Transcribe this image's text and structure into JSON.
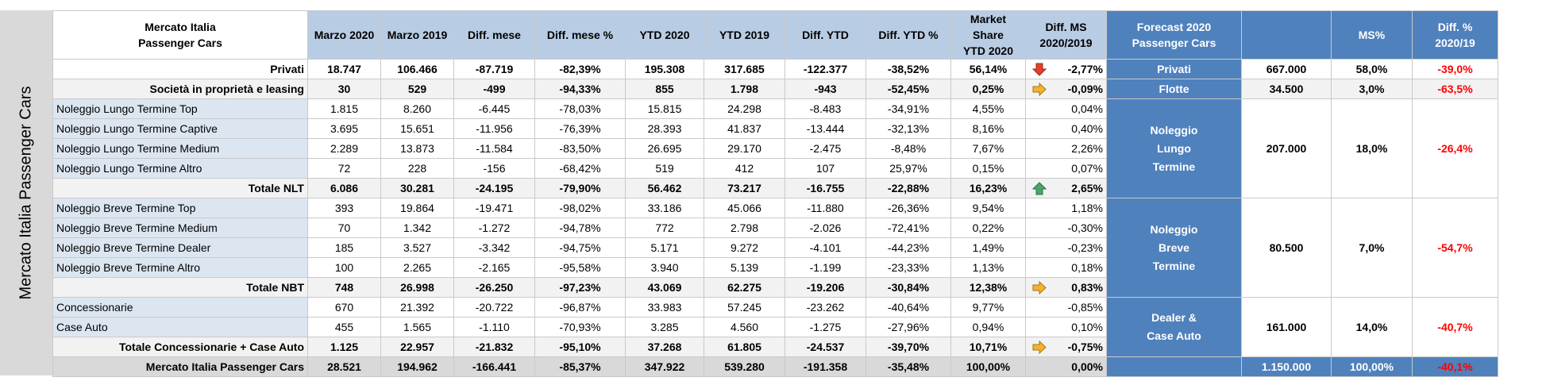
{
  "side_title": "Mercato Italia Passenger Cars",
  "header": {
    "label_line1": "Mercato Italia",
    "label_line2": "Passenger Cars",
    "cols": [
      "Marzo 2020",
      "Marzo 2019",
      "Diff. mese",
      "Diff. mese %",
      "YTD 2020",
      "YTD 2019",
      "Diff. YTD",
      "Diff. YTD %"
    ],
    "ms_line1": "Market Share",
    "ms_line2": "YTD 2020",
    "dms_line1": "Diff. MS",
    "dms_line2": "2020/2019",
    "fc_line1": "Forecast 2020",
    "fc_line2": "Passenger Cars",
    "fc_ms": "MS%",
    "fc_diff_line1": "Diff. %",
    "fc_diff_line2": "2020/19"
  },
  "rows": [
    {
      "label": "Privati",
      "v": [
        "18.747",
        "106.466",
        "-87.719",
        "-82,39%",
        "195.308",
        "317.685",
        "-122.377",
        "-38,52%",
        "56,14%",
        "-2,77%"
      ],
      "arrow": "down-red"
    },
    {
      "label": "Società in proprietà e leasing",
      "v": [
        "30",
        "529",
        "-499",
        "-94,33%",
        "855",
        "1.798",
        "-943",
        "-52,45%",
        "0,25%",
        "-0,09%"
      ],
      "arrow": "right-yellow"
    },
    {
      "label": "Noleggio Lungo Termine Top",
      "v": [
        "1.815",
        "8.260",
        "-6.445",
        "-78,03%",
        "15.815",
        "24.298",
        "-8.483",
        "-34,91%",
        "4,55%",
        "0,04%"
      ]
    },
    {
      "label": "Noleggio Lungo Termine Captive",
      "v": [
        "3.695",
        "15.651",
        "-11.956",
        "-76,39%",
        "28.393",
        "41.837",
        "-13.444",
        "-32,13%",
        "8,16%",
        "0,40%"
      ]
    },
    {
      "label": "Noleggio Lungo Termine Medium",
      "v": [
        "2.289",
        "13.873",
        "-11.584",
        "-83,50%",
        "26.695",
        "29.170",
        "-2.475",
        "-8,48%",
        "7,67%",
        "2,26%"
      ]
    },
    {
      "label": "Noleggio Lungo Termine Altro",
      "v": [
        "72",
        "228",
        "-156",
        "-68,42%",
        "519",
        "412",
        "107",
        "25,97%",
        "0,15%",
        "0,07%"
      ]
    },
    {
      "label": "Totale NLT",
      "v": [
        "6.086",
        "30.281",
        "-24.195",
        "-79,90%",
        "56.462",
        "73.217",
        "-16.755",
        "-22,88%",
        "16,23%",
        "2,65%"
      ],
      "arrow": "up-green"
    },
    {
      "label": "Noleggio Breve Termine Top",
      "v": [
        "393",
        "19.864",
        "-19.471",
        "-98,02%",
        "33.186",
        "45.066",
        "-11.880",
        "-26,36%",
        "9,54%",
        "1,18%"
      ]
    },
    {
      "label": "Noleggio Breve Termine Medium",
      "v": [
        "70",
        "1.342",
        "-1.272",
        "-94,78%",
        "772",
        "2.798",
        "-2.026",
        "-72,41%",
        "0,22%",
        "-0,30%"
      ]
    },
    {
      "label": "Noleggio Breve Termine Dealer",
      "v": [
        "185",
        "3.527",
        "-3.342",
        "-94,75%",
        "5.171",
        "9.272",
        "-4.101",
        "-44,23%",
        "1,49%",
        "-0,23%"
      ]
    },
    {
      "label": "Noleggio Breve Termine Altro",
      "v": [
        "100",
        "2.265",
        "-2.165",
        "-95,58%",
        "3.940",
        "5.139",
        "-1.199",
        "-23,33%",
        "1,13%",
        "0,18%"
      ]
    },
    {
      "label": "Totale NBT",
      "v": [
        "748",
        "26.998",
        "-26.250",
        "-97,23%",
        "43.069",
        "62.275",
        "-19.206",
        "-30,84%",
        "12,38%",
        "0,83%"
      ],
      "arrow": "right-yellow"
    },
    {
      "label": "Concessionarie",
      "v": [
        "670",
        "21.392",
        "-20.722",
        "-96,87%",
        "33.983",
        "57.245",
        "-23.262",
        "-40,64%",
        "9,77%",
        "-0,85%"
      ]
    },
    {
      "label": "Case Auto",
      "v": [
        "455",
        "1.565",
        "-1.110",
        "-70,93%",
        "3.285",
        "4.560",
        "-1.275",
        "-27,96%",
        "0,94%",
        "0,10%"
      ]
    },
    {
      "label": "Totale Concessionarie + Case Auto",
      "v": [
        "1.125",
        "22.957",
        "-21.832",
        "-95,10%",
        "37.268",
        "61.805",
        "-24.537",
        "-39,70%",
        "10,71%",
        "-0,75%"
      ],
      "arrow": "right-yellow"
    },
    {
      "label": "Mercato Italia Passenger Cars",
      "v": [
        "28.521",
        "194.962",
        "-166.441",
        "-85,37%",
        "347.922",
        "539.280",
        "-191.358",
        "-35,48%",
        "100,00%",
        "0,00%"
      ]
    }
  ],
  "forecast": {
    "privati": {
      "label": "Privati",
      "value": "667.000",
      "ms": "58,0%",
      "diff": "-39,0%"
    },
    "flotte": {
      "label": "Flotte",
      "value": "34.500",
      "ms": "3,0%",
      "diff": "-63,5%"
    },
    "nlt": {
      "label_lines": [
        "Noleggio",
        "Lungo",
        "Termine"
      ],
      "value": "207.000",
      "ms": "18,0%",
      "diff": "-26,4%"
    },
    "nbt": {
      "label_lines": [
        "Noleggio",
        "Breve",
        "Termine"
      ],
      "value": "80.500",
      "ms": "7,0%",
      "diff": "-54,7%"
    },
    "dealer": {
      "label_lines": [
        "Dealer &",
        "Case Auto"
      ],
      "value": "161.000",
      "ms": "14,0%",
      "diff": "-40,7%"
    },
    "total": {
      "value": "1.150.000",
      "ms": "100,00%",
      "diff": "-40,1%"
    }
  },
  "colors": {
    "header_blue": "#b8cce4",
    "forecast_blue": "#4f81bd",
    "negative": "#ff0000",
    "label_blue": "#dce6f1"
  }
}
